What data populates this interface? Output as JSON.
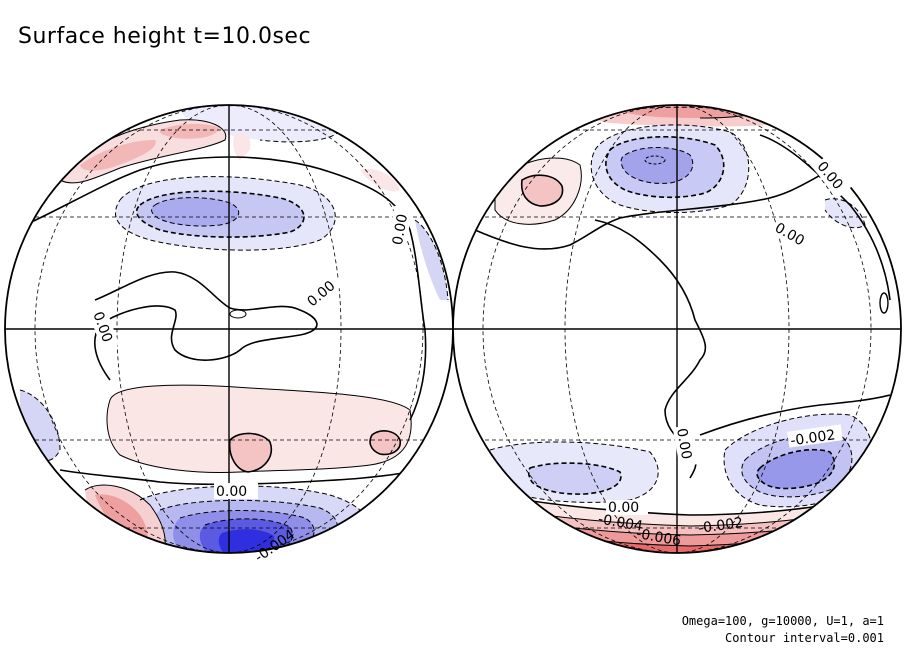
{
  "title": "Surface height t=10.0sec",
  "footer": {
    "params": "Omega=100, g=10000, U=1, a=1",
    "contour": "Contour interval=0.001"
  },
  "colors": {
    "positive": "#e04040",
    "negative": "#3030e0",
    "line": "#000000",
    "grid": "#000000",
    "background": "#ffffff"
  },
  "chart_data": {
    "type": "contour",
    "title": "Surface height t=10.0sec",
    "projection": "orthographic",
    "contour_interval": 0.001,
    "hemispheres": [
      {
        "name": "left-globe",
        "labels": [
          "0.00",
          "0.00",
          "0.00",
          "0.00",
          "-0.004"
        ],
        "extrema": [
          {
            "type": "min",
            "value": -0.004,
            "region": "south-pole"
          },
          {
            "type": "min",
            "value": -0.002,
            "region": "north-mid"
          },
          {
            "type": "max",
            "value": 0.002,
            "region": "south-mid"
          },
          {
            "type": "max",
            "value": 0.002,
            "region": "north-pole"
          }
        ]
      },
      {
        "name": "right-globe",
        "labels": [
          "0.00",
          "0.00",
          "0.00",
          "-0.002",
          "0.00",
          "-0.002",
          "-0.004",
          "-0.006"
        ],
        "extrema": [
          {
            "type": "min",
            "value": -0.003,
            "region": "north-mid"
          },
          {
            "type": "min",
            "value": -0.003,
            "region": "south-east"
          },
          {
            "type": "max",
            "value": 0.006,
            "region": "south-pole"
          },
          {
            "type": "max",
            "value": 0.002,
            "region": "north-west"
          }
        ]
      }
    ]
  }
}
